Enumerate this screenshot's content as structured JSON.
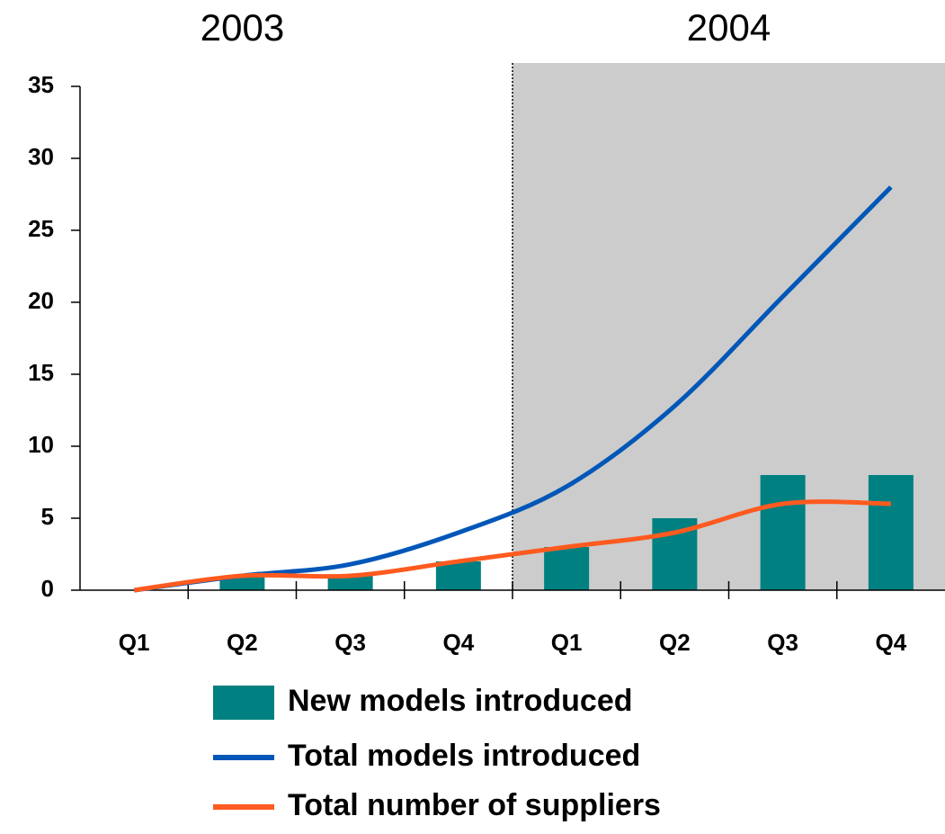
{
  "chart_data": {
    "type": "bar",
    "groups": [
      "2003",
      "2004"
    ],
    "categories": [
      "Q1",
      "Q2",
      "Q3",
      "Q4",
      "Q1",
      "Q2",
      "Q3",
      "Q4"
    ],
    "series": [
      {
        "name": "New models introduced",
        "type": "bar",
        "color": "#008080",
        "values": [
          0,
          1,
          1,
          2,
          3,
          5,
          8,
          8
        ]
      },
      {
        "name": "Total models introduced",
        "type": "line",
        "color": "#0057b8",
        "values": [
          0,
          1,
          1.8,
          4,
          7.2,
          12.8,
          20.4,
          28
        ]
      },
      {
        "name": "Total number of suppliers",
        "type": "line",
        "color": "#ff5a1f",
        "values": [
          0,
          1,
          1,
          2,
          3,
          4,
          6,
          6
        ]
      }
    ],
    "ylim": [
      0,
      35
    ],
    "yticks": [
      0,
      5,
      10,
      15,
      20,
      25,
      30,
      35
    ],
    "highlight_color": "#cccccc",
    "legend": "bottom"
  }
}
